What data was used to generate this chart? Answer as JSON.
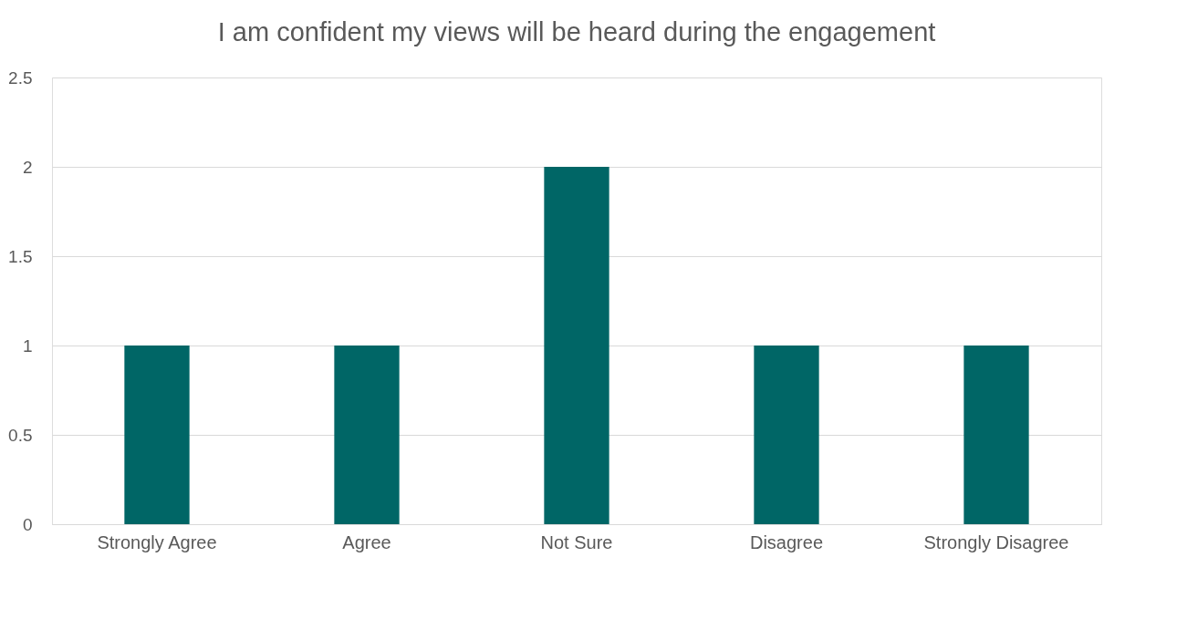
{
  "chart_data": {
    "type": "bar",
    "title": "I am confident my views will be heard during the engagement",
    "categories": [
      "Strongly Agree",
      "Agree",
      "Not Sure",
      "Disagree",
      "Strongly Disagree"
    ],
    "values": [
      1,
      1,
      2,
      1,
      1
    ],
    "color": "#006666",
    "ylim": [
      0,
      2.5
    ],
    "yticks": [
      0,
      0.5,
      1,
      1.5,
      2,
      2.5
    ],
    "grid": "y"
  }
}
